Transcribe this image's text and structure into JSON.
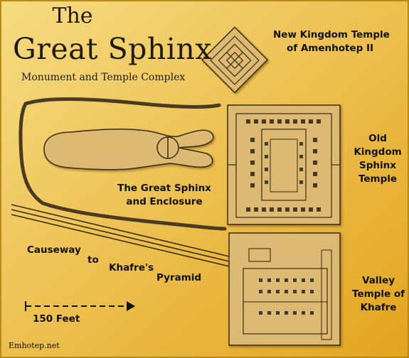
{
  "header": {
    "title_line1": "The",
    "title_line2": "Great Sphinx",
    "subtitle": "Monument and Temple Complex"
  },
  "labels": {
    "amenhotep_temple": [
      "New Kingdom Temple",
      "of Amenhotep II"
    ],
    "sphinx_temple": [
      "Old",
      "Kingdom",
      "Sphinx",
      "Temple"
    ],
    "sphinx_enclosure": [
      "The Great Sphinx",
      "and Enclosure"
    ],
    "causeway": [
      "Causeway",
      "to",
      "Khafre's",
      "Pyramid"
    ],
    "valley_temple": [
      "Valley",
      "Temple of",
      "Khafre"
    ]
  },
  "scale": {
    "label": "150 Feet"
  },
  "credit": "Emhotep.net",
  "colors": {
    "background_light": "#f6dc82",
    "background_dark": "#e3a41e",
    "structure_fill": "#ddba73",
    "structure_outline": "#3a2a10",
    "wall_fill": "#4a3a22"
  }
}
